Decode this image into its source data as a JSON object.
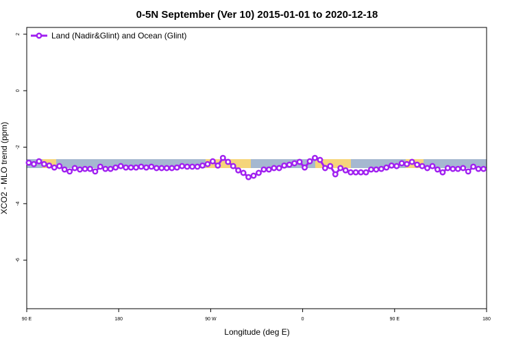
{
  "chart_data": {
    "type": "line",
    "title": "0-5N September (Ver 10)   2015-01-01 to 2020-12-18",
    "x_label": "Longitude (deg E)",
    "y_label": "XCO2 - MLO trend (ppm)",
    "x": [
      92,
      97,
      102,
      107,
      112,
      117,
      122,
      127,
      132,
      137,
      142,
      147,
      152,
      157,
      162,
      167,
      172,
      177,
      182,
      187,
      192,
      197,
      202,
      207,
      212,
      217,
      222,
      227,
      232,
      237,
      242,
      247,
      252,
      257,
      262,
      267,
      272,
      277,
      282,
      287,
      292,
      297,
      302,
      307,
      312,
      317,
      322,
      327,
      332,
      337,
      342,
      347,
      352,
      357,
      362,
      367,
      372,
      377,
      382,
      387,
      392,
      397,
      402,
      407,
      412,
      417,
      422,
      427,
      432,
      437,
      442,
      447,
      452,
      457,
      462,
      467,
      472,
      477,
      482,
      487,
      492,
      497,
      502,
      507,
      512,
      517,
      522,
      527,
      532,
      537
    ],
    "series": [
      {
        "name": "Land (Nadir&Glint) and Ocean (Glint)",
        "color": "#a020f0",
        "values": [
          -2.55,
          -2.6,
          -2.5,
          -2.6,
          -2.65,
          -2.72,
          -2.67,
          -2.79,
          -2.86,
          -2.74,
          -2.79,
          -2.77,
          -2.77,
          -2.86,
          -2.69,
          -2.77,
          -2.77,
          -2.72,
          -2.67,
          -2.72,
          -2.72,
          -2.72,
          -2.69,
          -2.72,
          -2.69,
          -2.74,
          -2.74,
          -2.74,
          -2.74,
          -2.72,
          -2.67,
          -2.69,
          -2.69,
          -2.69,
          -2.65,
          -2.6,
          -2.5,
          -2.65,
          -2.38,
          -2.52,
          -2.67,
          -2.82,
          -2.91,
          -3.06,
          -3.01,
          -2.91,
          -2.79,
          -2.79,
          -2.74,
          -2.74,
          -2.65,
          -2.62,
          -2.57,
          -2.52,
          -2.72,
          -2.5,
          -2.38,
          -2.45,
          -2.74,
          -2.67,
          -2.96,
          -2.74,
          -2.82,
          -2.89,
          -2.89,
          -2.89,
          -2.89,
          -2.79,
          -2.79,
          -2.77,
          -2.72,
          -2.65,
          -2.67,
          -2.57,
          -2.6,
          -2.52,
          -2.62,
          -2.67,
          -2.74,
          -2.67,
          -2.79,
          -2.89,
          -2.74,
          -2.77,
          -2.77,
          -2.74,
          -2.86,
          -2.69,
          -2.77,
          -2.77
        ]
      }
    ],
    "xlim": [
      90,
      540
    ],
    "xticks": [
      {
        "value": 90,
        "label": "90 E"
      },
      180,
      {
        "value": 270,
        "label": "90 W"
      },
      {
        "value": 360,
        "label": "0"
      },
      {
        "value": 450,
        "label": "90 E"
      },
      {
        "value": 540,
        "label": "180"
      }
    ],
    "ylim": [
      -7.72,
      2.24
    ],
    "yticks": [
      2,
      0,
      -2,
      -4,
      -6
    ],
    "legend": "top-left"
  }
}
